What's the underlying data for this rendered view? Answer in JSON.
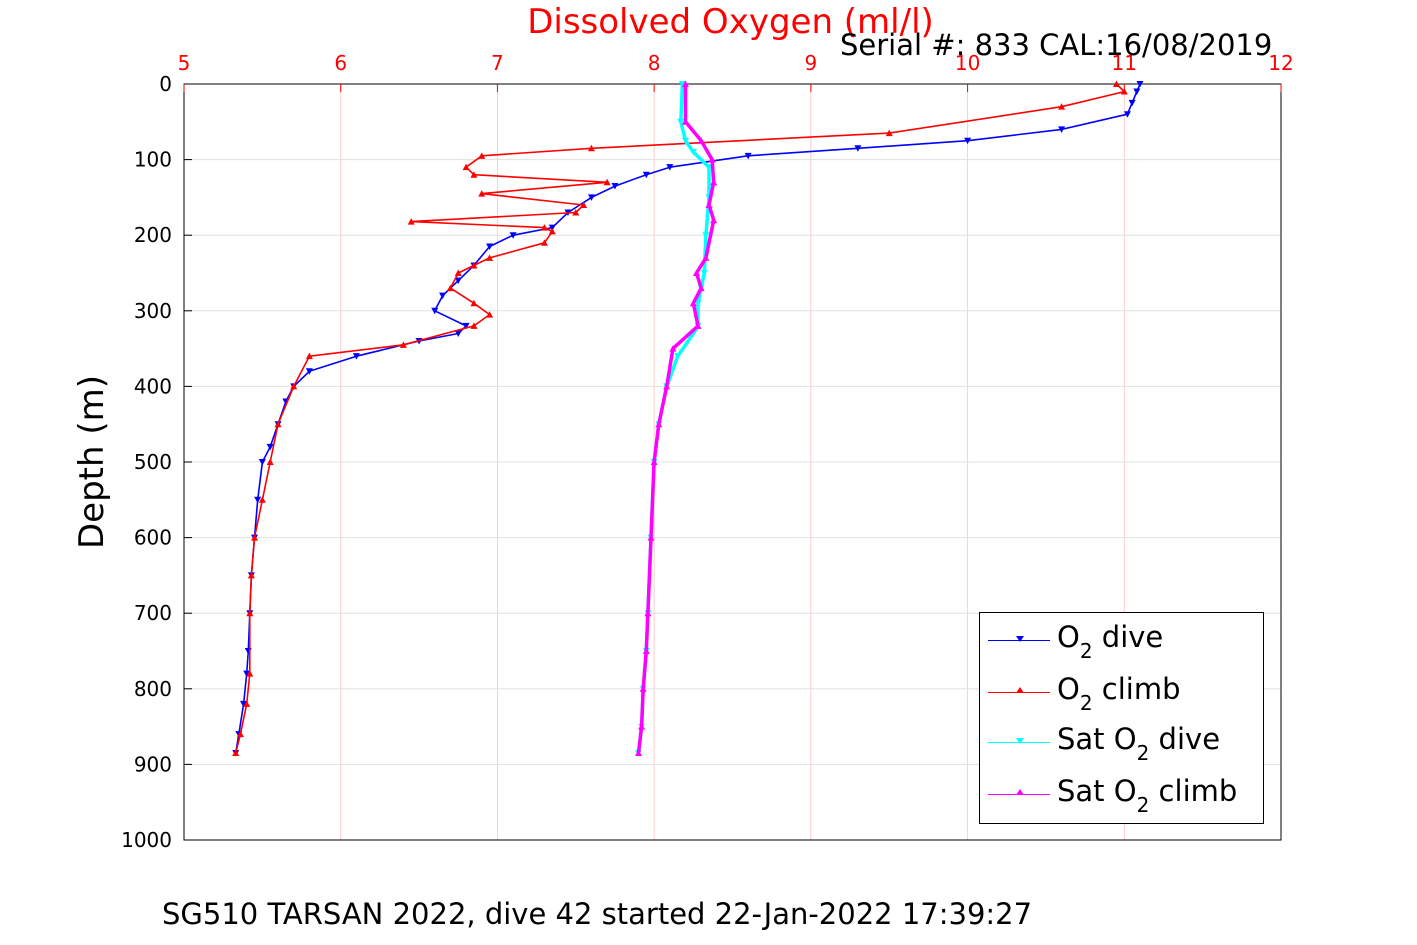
{
  "title": "Dissolved Oxygen (ml/l)",
  "serial": "Serial #: 833  CAL:16/08/2019",
  "footer": "SG510 TARSAN 2022, dive 42 started 22-Jan-2022 17:39:27",
  "colors": {
    "o2_dive": "#0000ff",
    "o2_climb": "#ff0000",
    "sat_dive": "#00ffff",
    "sat_climb": "#ff00ff",
    "top_axis": "#ff0000",
    "grid": "#ffcccc"
  },
  "legend": {
    "o2_dive": {
      "prefix": "O",
      "sub": "2",
      "suffix": " dive"
    },
    "o2_climb": {
      "prefix": "O",
      "sub": "2",
      "suffix": " climb"
    },
    "sat_dive": {
      "prefix": "Sat O",
      "sub": "2",
      "suffix": " dive"
    },
    "sat_climb": {
      "prefix": "Sat O",
      "sub": "2",
      "suffix": " climb"
    }
  },
  "chart_data": {
    "type": "line",
    "title": "Dissolved Oxygen (ml/l)",
    "xlabel": "",
    "ylabel": "Depth (m)",
    "xlim": [
      5,
      12
    ],
    "ylim": [
      0,
      1000
    ],
    "y_reversed": true,
    "x_axis_position": "top",
    "xticks": [
      5,
      6,
      7,
      8,
      9,
      10,
      11,
      12
    ],
    "yticks": [
      0,
      100,
      200,
      300,
      400,
      500,
      600,
      700,
      800,
      900,
      1000
    ],
    "grid": true,
    "legend_position": "bottom-right",
    "series": [
      {
        "name": "O2 dive",
        "x": [
          11.1,
          11.08,
          11.05,
          11.02,
          10.6,
          10.0,
          9.3,
          8.6,
          8.1,
          7.95,
          7.75,
          7.6,
          7.45,
          7.35,
          7.1,
          6.95,
          6.85,
          6.75,
          6.65,
          6.6,
          6.8,
          6.75,
          6.5,
          6.1,
          5.8,
          5.7,
          5.65,
          5.6,
          5.55,
          5.5,
          5.47,
          5.45,
          5.43,
          5.42,
          5.41,
          5.4,
          5.38,
          5.35,
          5.33
        ],
        "y": [
          0,
          10,
          25,
          40,
          60,
          75,
          85,
          95,
          110,
          120,
          135,
          150,
          170,
          190,
          200,
          215,
          240,
          260,
          280,
          300,
          320,
          330,
          340,
          360,
          380,
          400,
          420,
          450,
          480,
          500,
          550,
          600,
          650,
          700,
          750,
          780,
          820,
          860,
          885
        ]
      },
      {
        "name": "O2 climb",
        "x": [
          5.33,
          5.36,
          5.4,
          5.42,
          5.42,
          5.43,
          5.45,
          5.5,
          5.55,
          5.6,
          5.7,
          5.8,
          6.4,
          6.85,
          6.95,
          6.85,
          6.7,
          6.75,
          6.85,
          6.95,
          7.3,
          7.35,
          7.3,
          6.45,
          7.5,
          7.55,
          6.9,
          7.7,
          6.85,
          6.8,
          6.9,
          7.6,
          9.5,
          10.6,
          11.0,
          10.95
        ],
        "y": [
          885,
          860,
          820,
          780,
          700,
          650,
          600,
          550,
          500,
          450,
          400,
          360,
          345,
          320,
          305,
          290,
          270,
          250,
          240,
          230,
          210,
          195,
          190,
          182,
          170,
          160,
          145,
          130,
          120,
          110,
          95,
          85,
          65,
          30,
          10,
          0
        ]
      },
      {
        "name": "Sat O2 dive",
        "x": [
          8.18,
          8.17,
          8.2,
          8.25,
          8.35,
          8.35,
          8.33,
          8.32,
          8.3,
          8.28,
          8.28,
          8.25,
          8.15,
          8.08,
          8.03,
          8.0,
          7.98,
          7.96,
          7.95,
          7.93,
          7.92,
          7.9
        ],
        "y": [
          0,
          50,
          75,
          90,
          110,
          150,
          200,
          250,
          270,
          290,
          320,
          330,
          360,
          400,
          450,
          500,
          600,
          700,
          750,
          800,
          850,
          885
        ]
      },
      {
        "name": "Sat O2 climb",
        "x": [
          7.9,
          7.92,
          7.93,
          7.95,
          7.96,
          7.98,
          8.0,
          8.03,
          8.08,
          8.12,
          8.28,
          8.25,
          8.3,
          8.27,
          8.33,
          8.38,
          8.35,
          8.38,
          8.37,
          8.3,
          8.2,
          8.2
        ],
        "y": [
          885,
          850,
          800,
          750,
          700,
          600,
          500,
          450,
          400,
          350,
          320,
          290,
          270,
          250,
          230,
          180,
          160,
          130,
          100,
          75,
          50,
          0
        ]
      }
    ]
  }
}
